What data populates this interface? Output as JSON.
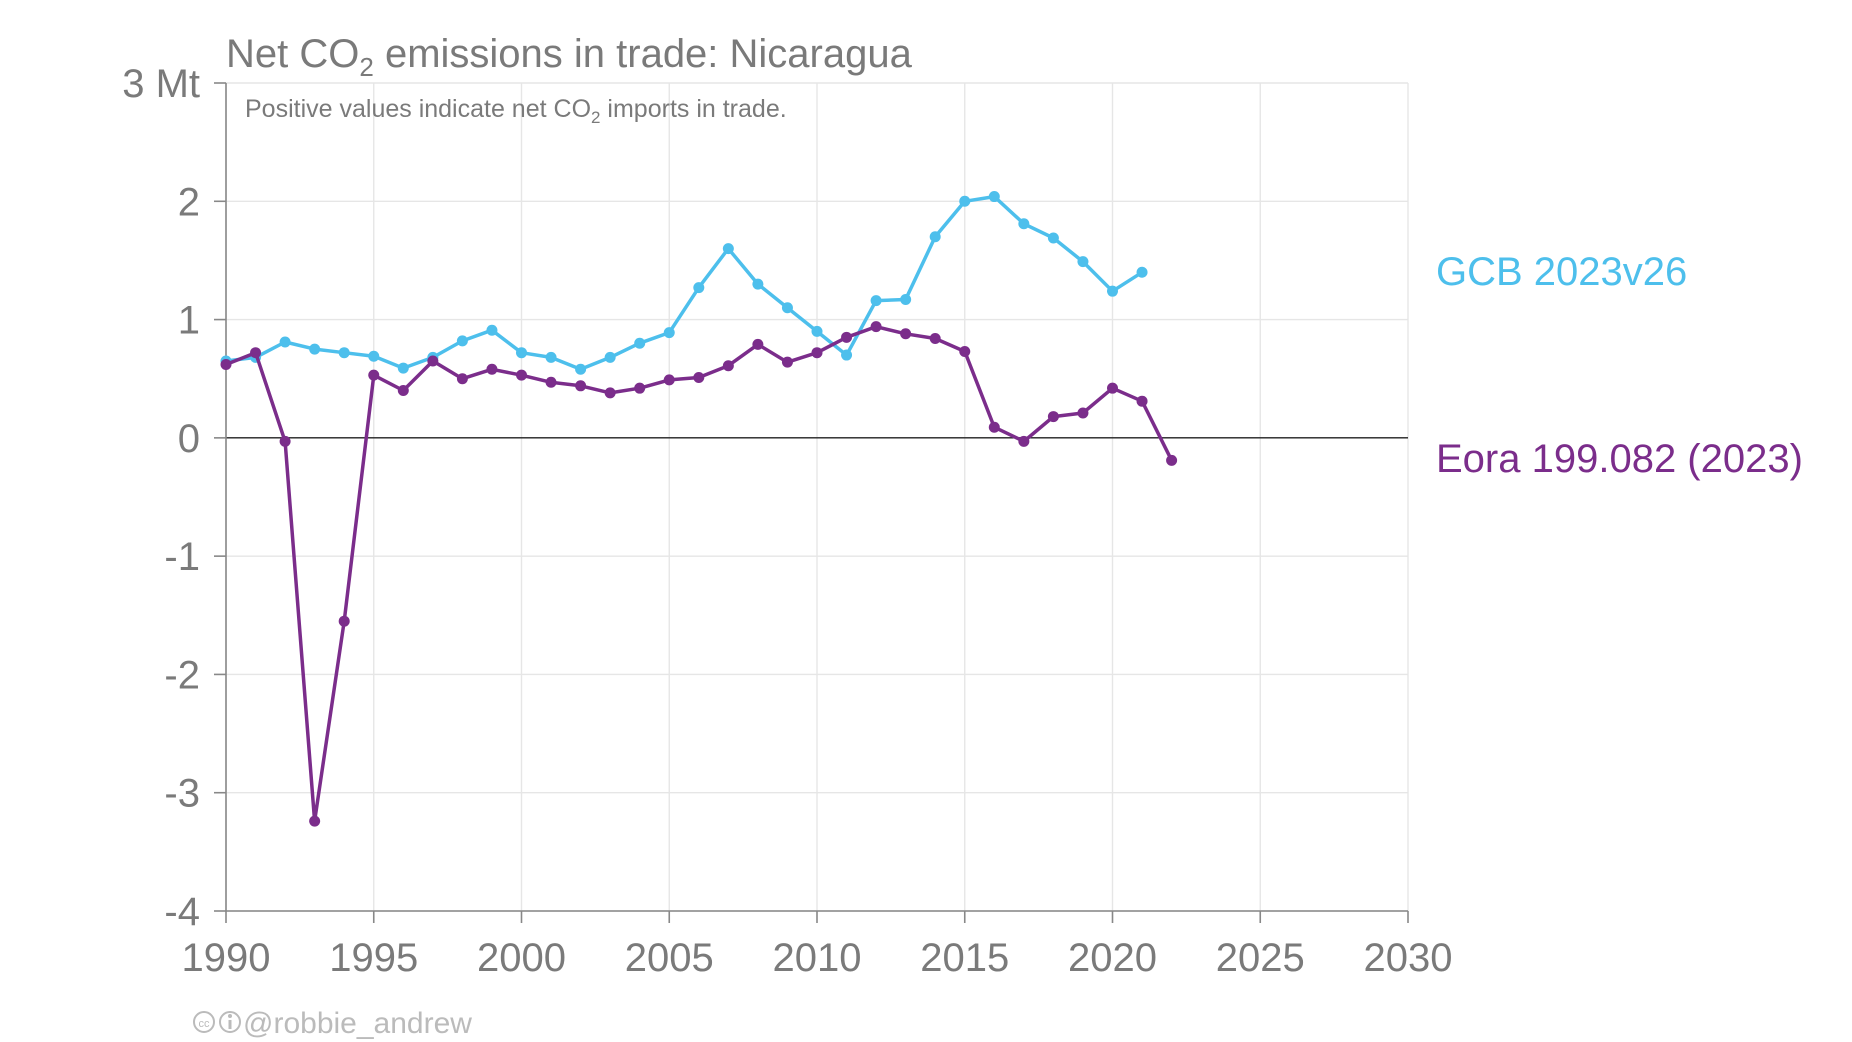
{
  "chart_data": {
    "type": "line",
    "title_pre": "Net CO",
    "title_sub": "2",
    "title_post": " emissions in trade: Nicaragua",
    "subtitle_pre": "Positive values indicate net CO",
    "subtitle_sub": "2",
    "subtitle_post": " imports in trade.",
    "ylim": [
      -4,
      3
    ],
    "xlim": [
      1990,
      2030
    ],
    "x_ticks": [
      "1990",
      "1995",
      "2000",
      "2005",
      "2010",
      "2015",
      "2020",
      "2025",
      "2030"
    ],
    "y_ticks": [
      "3 Mt",
      "2",
      "1",
      "0",
      "-1",
      "-2",
      "-3",
      "-4"
    ],
    "grid": true,
    "series": [
      {
        "name": "GCB 2023v26",
        "color": "#4dbfec",
        "x": [
          1990,
          1991,
          1992,
          1993,
          1994,
          1995,
          1996,
          1997,
          1998,
          1999,
          2000,
          2001,
          2002,
          2003,
          2004,
          2005,
          2006,
          2007,
          2008,
          2009,
          2010,
          2011,
          2012,
          2013,
          2014,
          2015,
          2016,
          2017,
          2018,
          2019,
          2020,
          2021
        ],
        "values": [
          0.65,
          0.68,
          0.81,
          0.75,
          0.72,
          0.69,
          0.59,
          0.68,
          0.82,
          0.91,
          0.72,
          0.68,
          0.58,
          0.68,
          0.8,
          0.89,
          1.27,
          1.6,
          1.3,
          1.1,
          0.9,
          0.7,
          1.16,
          1.17,
          1.7,
          2.0,
          2.04,
          1.81,
          1.69,
          1.49,
          1.24,
          1.4
        ]
      },
      {
        "name": "Eora 199.082 (2023)",
        "color": "#7b2d8b",
        "x": [
          1990,
          1991,
          1992,
          1993,
          1994,
          1995,
          1996,
          1997,
          1998,
          1999,
          2000,
          2001,
          2002,
          2003,
          2004,
          2005,
          2006,
          2007,
          2008,
          2009,
          2010,
          2011,
          2012,
          2013,
          2014,
          2015,
          2016,
          2017,
          2018,
          2019,
          2020,
          2021,
          2022
        ],
        "values": [
          0.62,
          0.72,
          -0.03,
          -3.24,
          -1.55,
          0.53,
          0.4,
          0.65,
          0.5,
          0.58,
          0.53,
          0.47,
          0.44,
          0.38,
          0.42,
          0.49,
          0.51,
          0.61,
          0.79,
          0.64,
          0.72,
          0.85,
          0.94,
          0.88,
          0.84,
          0.73,
          0.09,
          -0.03,
          0.18,
          0.21,
          0.42,
          0.31,
          -0.19
        ]
      }
    ],
    "credit": "@robbie_andrew"
  }
}
